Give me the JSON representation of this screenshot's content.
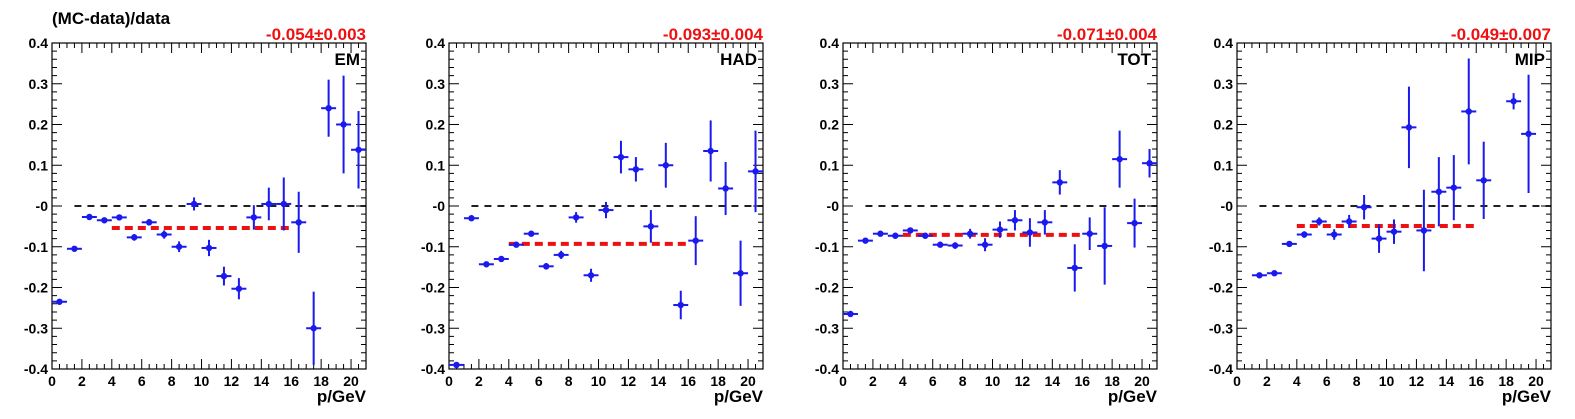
{
  "figure": {
    "ylabel": "(MC-data)/data",
    "xlabel": "p/GeV",
    "colors": {
      "points": "#1a1aee",
      "fit": "#ee1111",
      "zero": "#000000"
    }
  },
  "chart_data": [
    {
      "type": "scatter",
      "label": "EM",
      "fit_text": "-0.054±0.003",
      "fit_value": -0.054,
      "fit_x": [
        4,
        16
      ],
      "xlim": [
        0,
        21
      ],
      "ylim": [
        -0.4,
        0.4
      ],
      "xticks": [
        "0",
        "2",
        "4",
        "6",
        "8",
        "10",
        "12",
        "14",
        "16",
        "18",
        "20"
      ],
      "yticks": [
        "-0.4",
        "-0.3",
        "-0.2",
        "-0.1",
        "-0",
        "0.1",
        "0.2",
        "0.3",
        "0.4"
      ],
      "x": [
        0.5,
        1.5,
        2.5,
        3.5,
        4.5,
        5.5,
        6.5,
        7.5,
        8.5,
        9.5,
        10.5,
        11.5,
        12.5,
        13.5,
        14.5,
        15.5,
        16.5,
        17.5,
        18.5,
        19.5,
        20.5
      ],
      "y": [
        -0.235,
        -0.105,
        -0.027,
        -0.035,
        -0.028,
        -0.077,
        -0.04,
        -0.07,
        -0.1,
        0.005,
        -0.103,
        -0.172,
        -0.203,
        -0.028,
        0.005,
        0.005,
        -0.04,
        -0.3,
        0.24,
        0.2,
        0.138
      ],
      "yerr": [
        0.006,
        0.004,
        0.004,
        0.006,
        0.006,
        0.008,
        0.008,
        0.01,
        0.013,
        0.016,
        0.02,
        0.023,
        0.026,
        0.03,
        0.04,
        0.065,
        0.075,
        0.09,
        0.07,
        0.12,
        0.095
      ]
    },
    {
      "type": "scatter",
      "label": "HAD",
      "fit_text": "-0.093±0.004",
      "fit_value": -0.093,
      "fit_x": [
        4,
        16
      ],
      "xlim": [
        0,
        21
      ],
      "ylim": [
        -0.4,
        0.4
      ],
      "xticks": [
        "0",
        "2",
        "4",
        "6",
        "8",
        "10",
        "12",
        "14",
        "16",
        "18",
        "20"
      ],
      "yticks": [
        "-0.4",
        "-0.3",
        "-0.2",
        "-0.1",
        "-0",
        "0.1",
        "0.2",
        "0.3",
        "0.4"
      ],
      "x": [
        0.5,
        1.5,
        2.5,
        3.5,
        4.5,
        5.5,
        6.5,
        7.5,
        8.5,
        9.5,
        10.5,
        11.5,
        12.5,
        13.5,
        14.5,
        15.5,
        16.5,
        17.5,
        18.5,
        19.5,
        20.5
      ],
      "y": [
        -0.39,
        -0.03,
        -0.143,
        -0.13,
        -0.095,
        -0.068,
        -0.148,
        -0.12,
        -0.028,
        -0.17,
        -0.01,
        0.12,
        0.09,
        -0.05,
        0.1,
        -0.243,
        -0.085,
        0.135,
        0.043,
        -0.165,
        0.085
      ],
      "yerr": [
        0.006,
        0.004,
        0.004,
        0.004,
        0.006,
        0.006,
        0.008,
        0.01,
        0.013,
        0.016,
        0.02,
        0.04,
        0.03,
        0.04,
        0.055,
        0.035,
        0.06,
        0.075,
        0.065,
        0.08,
        0.1
      ]
    },
    {
      "type": "scatter",
      "label": "TOT",
      "fit_text": "-0.071±0.004",
      "fit_value": -0.071,
      "fit_x": [
        4,
        16
      ],
      "xlim": [
        0,
        21
      ],
      "ylim": [
        -0.4,
        0.4
      ],
      "xticks": [
        "0",
        "2",
        "4",
        "6",
        "8",
        "10",
        "12",
        "14",
        "16",
        "18",
        "20"
      ],
      "yticks": [
        "-0.4",
        "-0.3",
        "-0.2",
        "-0.1",
        "-0",
        "0.1",
        "0.2",
        "0.3",
        "0.4"
      ],
      "x": [
        0.5,
        1.5,
        2.5,
        3.5,
        4.5,
        5.5,
        6.5,
        7.5,
        8.5,
        9.5,
        10.5,
        11.5,
        12.5,
        13.5,
        14.5,
        15.5,
        16.5,
        17.5,
        18.5,
        19.5,
        20.5
      ],
      "y": [
        -0.265,
        -0.085,
        -0.068,
        -0.073,
        -0.06,
        -0.073,
        -0.095,
        -0.097,
        -0.068,
        -0.095,
        -0.058,
        -0.035,
        -0.065,
        -0.04,
        0.058,
        -0.152,
        -0.068,
        -0.098,
        0.115,
        -0.042,
        0.105
      ],
      "yerr": [
        0.006,
        0.004,
        0.004,
        0.004,
        0.004,
        0.006,
        0.006,
        0.008,
        0.012,
        0.016,
        0.02,
        0.025,
        0.035,
        0.03,
        0.03,
        0.058,
        0.04,
        0.095,
        0.07,
        0.06,
        0.035
      ]
    },
    {
      "type": "scatter",
      "label": "MIP",
      "fit_text": "-0.049±0.007",
      "fit_value": -0.049,
      "fit_x": [
        4,
        16
      ],
      "xlim": [
        0,
        21
      ],
      "ylim": [
        -0.4,
        0.4
      ],
      "xticks": [
        "0",
        "2",
        "4",
        "6",
        "8",
        "10",
        "12",
        "14",
        "16",
        "18",
        "20"
      ],
      "yticks": [
        "-0.4",
        "-0.3",
        "-0.2",
        "-0.1",
        "-0",
        "0.1",
        "0.2",
        "0.3",
        "0.4"
      ],
      "x": [
        1.5,
        2.5,
        3.5,
        4.5,
        5.5,
        6.5,
        7.5,
        8.5,
        9.5,
        10.5,
        11.5,
        12.5,
        13.5,
        14.5,
        15.5,
        16.5,
        18.5,
        19.5
      ],
      "y": [
        -0.17,
        -0.165,
        -0.093,
        -0.07,
        -0.038,
        -0.07,
        -0.038,
        -0.003,
        -0.08,
        -0.063,
        0.193,
        -0.06,
        0.035,
        0.045,
        0.232,
        0.063,
        0.257,
        0.177
      ],
      "yerr": [
        0.004,
        0.004,
        0.006,
        0.008,
        0.01,
        0.013,
        0.016,
        0.03,
        0.035,
        0.03,
        0.1,
        0.1,
        0.085,
        0.08,
        0.13,
        0.095,
        0.02,
        0.145
      ]
    }
  ]
}
